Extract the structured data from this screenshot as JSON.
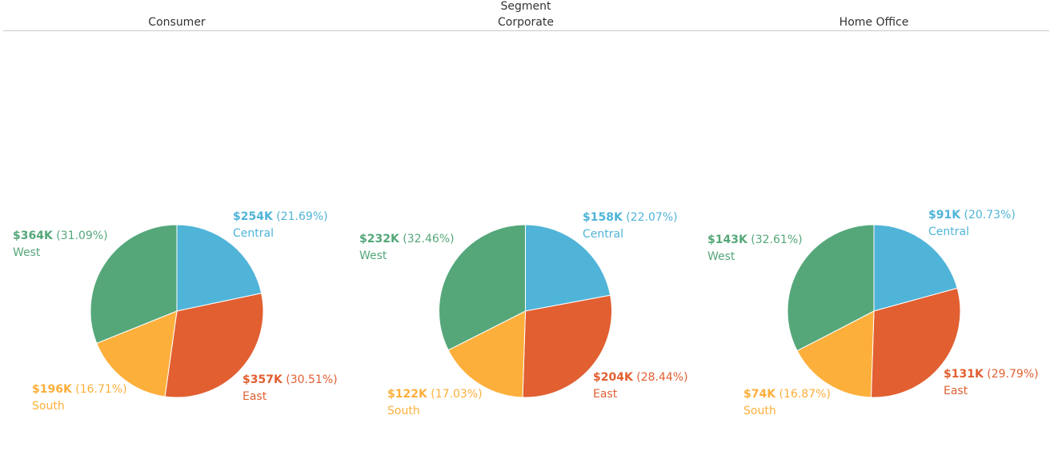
{
  "header": {
    "field_title": "Segment"
  },
  "colors": {
    "Central": "#50b4d8",
    "East": "#e15f31",
    "South": "#fdaf3b",
    "West": "#55a77a",
    "header_text": "#333333",
    "rule": "#c8c8c8"
  },
  "chart_data": {
    "type": "pie",
    "title": "Segment",
    "slice_order": [
      "Central",
      "East",
      "South",
      "West"
    ],
    "start_angle": "top, clockwise",
    "panels": [
      {
        "segment": "Consumer",
        "slices": [
          {
            "region": "Central",
            "value_label": "$254K",
            "percent_label": "(21.69%)",
            "percent": 21.69
          },
          {
            "region": "East",
            "value_label": "$357K",
            "percent_label": "(30.51%)",
            "percent": 30.51
          },
          {
            "region": "South",
            "value_label": "$196K",
            "percent_label": "(16.71%)",
            "percent": 16.71
          },
          {
            "region": "West",
            "value_label": "$364K",
            "percent_label": "(31.09%)",
            "percent": 31.09
          }
        ]
      },
      {
        "segment": "Corporate",
        "slices": [
          {
            "region": "Central",
            "value_label": "$158K",
            "percent_label": "(22.07%)",
            "percent": 22.07
          },
          {
            "region": "East",
            "value_label": "$204K",
            "percent_label": "(28.44%)",
            "percent": 28.44
          },
          {
            "region": "South",
            "value_label": "$122K",
            "percent_label": "(17.03%)",
            "percent": 17.03
          },
          {
            "region": "West",
            "value_label": "$232K",
            "percent_label": "(32.46%)",
            "percent": 32.46
          }
        ]
      },
      {
        "segment": "Home Office",
        "slices": [
          {
            "region": "Central",
            "value_label": "$91K",
            "percent_label": "(20.73%)",
            "percent": 20.73
          },
          {
            "region": "East",
            "value_label": "$131K",
            "percent_label": "(29.79%)",
            "percent": 29.79
          },
          {
            "region": "South",
            "value_label": "$74K",
            "percent_label": "(16.87%)",
            "percent": 16.87
          },
          {
            "region": "West",
            "value_label": "$143K",
            "percent_label": "(32.61%)",
            "percent": 32.61
          }
        ]
      }
    ]
  }
}
